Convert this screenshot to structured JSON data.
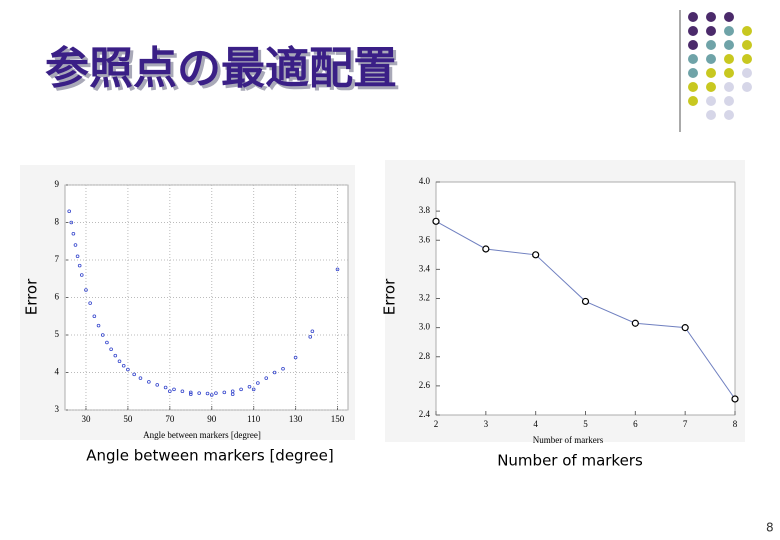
{
  "title": "参照点の最適配置",
  "page_number": "8",
  "chart_data": [
    {
      "type": "scatter",
      "ylabel": "Error",
      "xlabel": "Angle between markers [degree]",
      "color": "#3344cc",
      "grid": true,
      "x": [
        22,
        23,
        24,
        25,
        26,
        27,
        28,
        30,
        32,
        34,
        36,
        38,
        40,
        42,
        44,
        46,
        48,
        50,
        53,
        56,
        60,
        64,
        68,
        72,
        76,
        80,
        84,
        88,
        92,
        96,
        100,
        104,
        108,
        112,
        116,
        120,
        124,
        130,
        137,
        138,
        150,
        70,
        80,
        90,
        100,
        110
      ],
      "values": [
        8.3,
        8.0,
        7.7,
        7.4,
        7.1,
        6.85,
        6.6,
        6.2,
        5.85,
        5.5,
        5.25,
        5.0,
        4.8,
        4.62,
        4.45,
        4.3,
        4.18,
        4.08,
        3.95,
        3.85,
        3.75,
        3.67,
        3.6,
        3.55,
        3.5,
        3.47,
        3.45,
        3.44,
        3.45,
        3.47,
        3.5,
        3.55,
        3.62,
        3.72,
        3.85,
        4.0,
        4.1,
        4.4,
        4.95,
        5.1,
        6.75,
        3.5,
        3.42,
        3.4,
        3.42,
        3.55
      ],
      "xlim": [
        20,
        155
      ],
      "ylim": [
        3,
        9
      ],
      "xticks": [
        30,
        50,
        70,
        90,
        110,
        130,
        150
      ],
      "yticks": [
        3,
        4,
        5,
        6,
        7,
        8,
        9
      ]
    },
    {
      "type": "line",
      "ylabel": "Error",
      "xlabel": "Number of markers",
      "color": "#7080c0",
      "grid": false,
      "x": [
        2,
        3,
        4,
        5,
        6,
        7,
        8
      ],
      "values": [
        3.73,
        3.54,
        3.5,
        3.18,
        3.03,
        3.0,
        2.51
      ],
      "xlim": [
        2,
        8
      ],
      "ylim": [
        2.4,
        4.0
      ],
      "xticks": [
        2,
        3,
        4,
        5,
        6,
        7,
        8
      ],
      "yticks": [
        2.4,
        2.6,
        2.8,
        {
          "value": 3.0,
          "label": "3.0"
        },
        3.2,
        3.4,
        3.6,
        3.8,
        {
          "value": 4.0,
          "label": "4.0"
        }
      ]
    }
  ]
}
